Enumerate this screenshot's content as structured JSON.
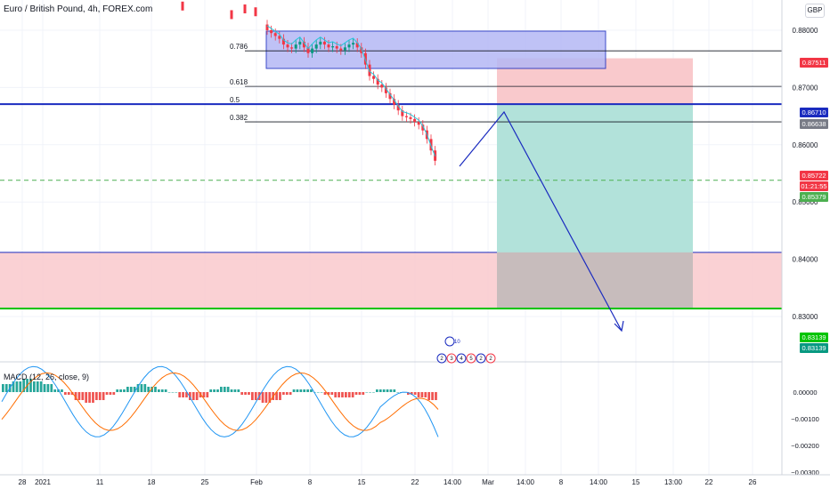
{
  "header": {
    "title": "Euro / British Pound, 4h, FOREX.com",
    "currency": "GBP"
  },
  "macd": {
    "label": "MACD (12, 26, close, 9)",
    "ticks": [
      "0.00000",
      "−0.00100",
      "−0.00200",
      "−0.00300"
    ]
  },
  "chart_data": {
    "type": "candlestick",
    "symbol": "EURGBP",
    "timeframe": "4h",
    "price_axis": {
      "ticks": [
        "0.88000",
        "0.87000",
        "0.86000",
        "0.85000",
        "0.84000",
        "0.83000"
      ],
      "ylim": [
        0.8255,
        0.8825
      ]
    },
    "x_axis": {
      "ticks": [
        "28",
        "2021",
        "11",
        "18",
        "25",
        "Feb",
        "8",
        "15",
        "22",
        "14:00",
        "Mar",
        "14:00",
        "8",
        "14:00",
        "15",
        "13:00",
        "22",
        "26"
      ]
    },
    "price_labels": [
      {
        "value": "0.87511",
        "color": "#f23645"
      },
      {
        "value": "0.86710",
        "color": "#1a2bbf"
      },
      {
        "value": "0.86638",
        "color": "#787b86"
      },
      {
        "value": "0.85722",
        "color": "#f23645"
      },
      {
        "value": "01:21:55",
        "color": "#f23645"
      },
      {
        "value": "0.85379",
        "color": "#4caf50"
      },
      {
        "value": "0.83139",
        "color": "#00c400"
      },
      {
        "value": "0.83139",
        "color": "#089981"
      }
    ],
    "fibonacci": [
      {
        "level": "0.786",
        "price": 0.8764
      },
      {
        "level": "0.618",
        "price": 0.8702
      },
      {
        "level": "0.5",
        "price": 0.8671
      },
      {
        "level": "0.382",
        "price": 0.864
      }
    ],
    "lines": {
      "blue_resistance": 0.8671,
      "green_support": 0.8314,
      "blue_zone_top": 0.8412,
      "current_price_dashed": 0.8538
    },
    "close_series": [
      0.88,
      0.8795,
      0.879,
      0.8785,
      0.8775,
      0.877,
      0.8768,
      0.8775,
      0.878,
      0.877,
      0.876,
      0.8768,
      0.8775,
      0.878,
      0.8775,
      0.877,
      0.8772,
      0.8768,
      0.8765,
      0.877,
      0.8775,
      0.8778,
      0.877,
      0.876,
      0.874,
      0.872,
      0.8715,
      0.8705,
      0.87,
      0.869,
      0.868,
      0.867,
      0.866,
      0.865,
      0.8648,
      0.8645,
      0.864,
      0.8635,
      0.8625,
      0.861,
      0.859,
      0.8572
    ],
    "macd_hist": [
      0.0003,
      0.0004,
      0.0005,
      0.0004,
      0.0003,
      0.0001,
      -0.0001,
      -0.0003,
      -0.0004,
      -0.0003,
      -0.0001,
      0.0001,
      0.0002,
      0.0003,
      0.0002,
      0.0001,
      0.0,
      -0.0002,
      -0.0003,
      -0.0002,
      0.0001,
      0.0002,
      0.0001,
      -0.0001,
      -0.0003,
      -0.0004,
      -0.0003,
      -0.0001,
      0.0001,
      0.0001,
      0.0,
      -0.0001,
      -0.0002,
      -0.0002,
      -0.0001,
      0.0,
      0.0001,
      0.0001,
      0.0,
      -0.0001,
      -0.0002,
      -0.0003
    ]
  },
  "events": {
    "count": "10",
    "items": [
      "2",
      "3",
      "4",
      "5",
      "2",
      "2"
    ]
  },
  "colors": {
    "up": "#089981",
    "down": "#f23645",
    "blue": "#1a2bbf",
    "green": "#00c400",
    "rect_fill": "#b4b8f5",
    "tp_fill": "#b2e2da",
    "sl_fill": "#f9c9cc"
  }
}
